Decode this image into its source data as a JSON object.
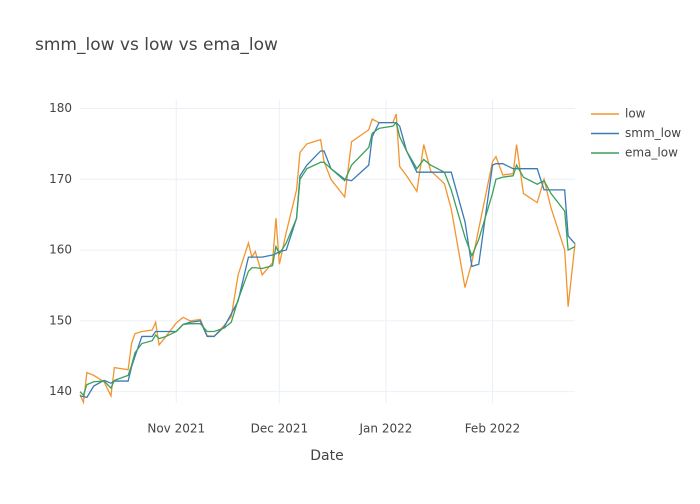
{
  "chart_data": {
    "type": "line",
    "title": "smm_low vs low vs ema_low",
    "x_label": "Date",
    "x": [
      "2021-10-04",
      "2021-10-05",
      "2021-10-06",
      "2021-10-08",
      "2021-10-11",
      "2021-10-13",
      "2021-10-14",
      "2021-10-18",
      "2021-10-19",
      "2021-10-20",
      "2021-10-22",
      "2021-10-25",
      "2021-10-26",
      "2021-10-27",
      "2021-10-29",
      "2021-11-01",
      "2021-11-03",
      "2021-11-05",
      "2021-11-08",
      "2021-11-10",
      "2021-11-12",
      "2021-11-15",
      "2021-11-17",
      "2021-11-19",
      "2021-11-22",
      "2021-11-23",
      "2021-11-24",
      "2021-11-26",
      "2021-11-29",
      "2021-11-30",
      "2021-12-01",
      "2021-12-03",
      "2021-12-06",
      "2021-12-07",
      "2021-12-09",
      "2021-12-13",
      "2021-12-14",
      "2021-12-16",
      "2021-12-20",
      "2021-12-22",
      "2021-12-27",
      "2021-12-28",
      "2021-12-30",
      "2022-01-03",
      "2022-01-04",
      "2022-01-05",
      "2022-01-07",
      "2022-01-10",
      "2022-01-12",
      "2022-01-14",
      "2022-01-18",
      "2022-01-20",
      "2022-01-24",
      "2022-01-26",
      "2022-01-28",
      "2022-02-01",
      "2022-02-02",
      "2022-02-04",
      "2022-02-07",
      "2022-02-08",
      "2022-02-10",
      "2022-02-14",
      "2022-02-16",
      "2022-02-18",
      "2022-02-22",
      "2022-02-23",
      "2022-02-25"
    ],
    "series": [
      {
        "name": "low",
        "color": "#f2952f",
        "values": [
          139.6,
          138.5,
          142.7,
          142.3,
          141.4,
          139.4,
          143.4,
          143.1,
          146.8,
          148.2,
          148.5,
          148.7,
          149.8,
          146.6,
          147.8,
          149.7,
          150.5,
          150.0,
          150.2,
          147.9,
          147.8,
          149.4,
          150.6,
          156.5,
          161.0,
          159.0,
          159.8,
          156.5,
          158.2,
          164.5,
          158.0,
          162.5,
          168.5,
          173.8,
          175.0,
          175.6,
          172.5,
          170.0,
          167.5,
          175.3,
          177.0,
          178.5,
          178.0,
          178.0,
          179.2,
          171.8,
          170.5,
          168.3,
          174.9,
          171.2,
          169.4,
          165.8,
          154.7,
          158.3,
          163.0,
          172.5,
          173.2,
          170.6,
          170.8,
          174.9,
          168.0,
          166.7,
          170.0,
          166.0,
          160.0,
          152.0,
          160.9
        ]
      },
      {
        "name": "smm_low",
        "color": "#3a7bb5",
        "values": [
          139.4,
          139.3,
          139.2,
          140.8,
          141.6,
          141.2,
          141.5,
          141.5,
          143.5,
          145.0,
          147.8,
          147.8,
          148.5,
          148.5,
          148.5,
          148.5,
          149.5,
          149.8,
          150.0,
          147.8,
          147.8,
          149.2,
          151.0,
          152.8,
          159.0,
          159.0,
          159.0,
          159.0,
          159.3,
          159.5,
          159.8,
          160.0,
          164.5,
          170.5,
          172.0,
          174.0,
          174.0,
          171.5,
          170.0,
          169.8,
          172.0,
          176.0,
          178.0,
          178.0,
          178.0,
          177.5,
          174.0,
          171.0,
          171.0,
          171.0,
          171.0,
          171.0,
          164.0,
          157.7,
          158.0,
          172.0,
          172.2,
          172.2,
          171.5,
          171.5,
          171.5,
          171.5,
          168.5,
          168.5,
          168.5,
          162.0,
          160.9
        ]
      },
      {
        "name": "ema_low",
        "color": "#3ca05a",
        "values": [
          140.0,
          139.5,
          141.0,
          141.4,
          141.5,
          140.5,
          141.6,
          142.3,
          143.7,
          145.5,
          146.8,
          147.2,
          148.0,
          147.5,
          147.8,
          148.5,
          149.5,
          149.6,
          149.6,
          148.5,
          148.5,
          149.0,
          149.8,
          153.0,
          157.0,
          157.5,
          157.5,
          157.4,
          157.8,
          160.5,
          159.5,
          161.0,
          164.5,
          170.0,
          171.5,
          172.4,
          172.4,
          171.5,
          169.8,
          172.0,
          174.5,
          176.5,
          177.2,
          177.5,
          178.0,
          176.0,
          174.0,
          171.5,
          172.8,
          172.0,
          171.0,
          168.5,
          161.8,
          159.2,
          161.5,
          168.0,
          170.0,
          170.3,
          170.5,
          172.0,
          170.3,
          169.3,
          169.8,
          168.0,
          165.5,
          160.0,
          160.5
        ]
      }
    ],
    "xlim": [
      "2021-10-04",
      "2022-02-25"
    ],
    "xticks": [
      {
        "value": "2021-11-01",
        "label": "Nov 2021"
      },
      {
        "value": "2021-12-01",
        "label": "Dec 2021"
      },
      {
        "value": "2022-01-01",
        "label": "Jan 2022"
      },
      {
        "value": "2022-02-01",
        "label": "Feb 2022"
      }
    ],
    "ylim": [
      138.4,
      181.2
    ],
    "yticks": [
      140,
      150,
      160,
      170,
      180
    ],
    "grid": true,
    "legend": "right"
  }
}
